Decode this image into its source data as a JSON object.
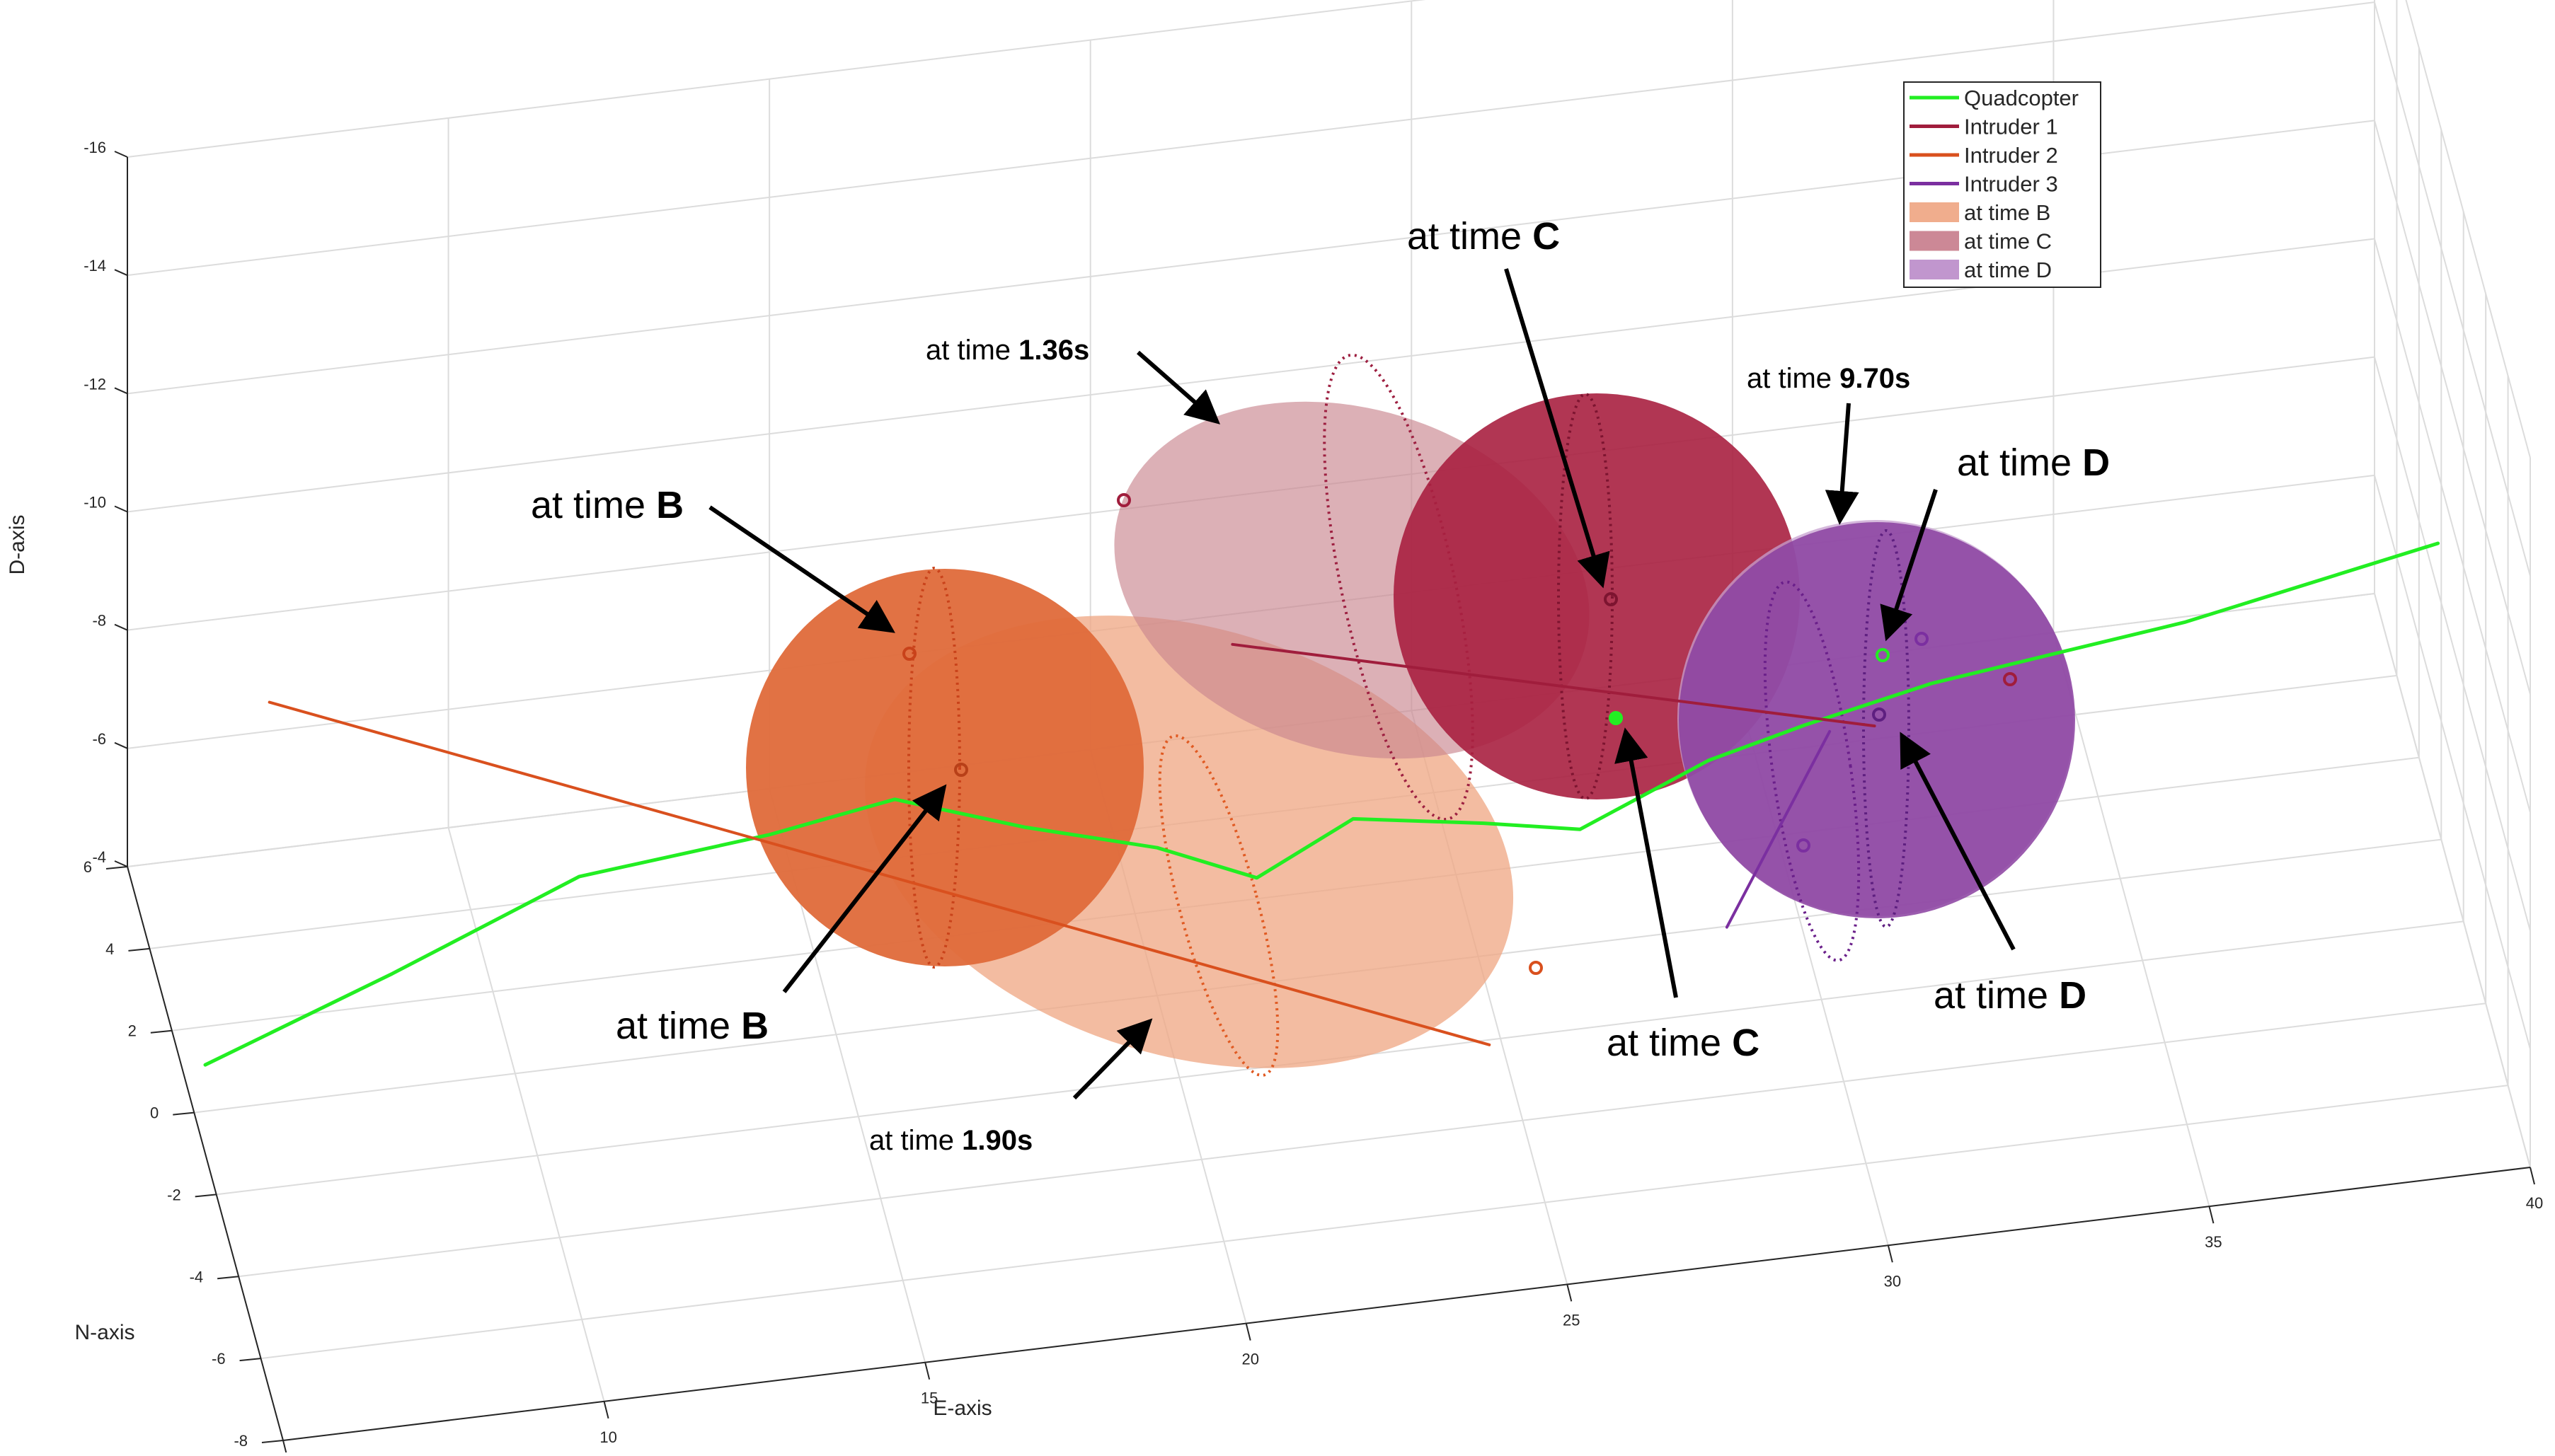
{
  "chart_data": {
    "type": "line",
    "projection": "3d",
    "axes": {
      "x": {
        "label": "E-axis",
        "range": [
          5,
          40
        ],
        "ticks": [
          "5",
          "10",
          "15",
          "20",
          "25",
          "30",
          "35",
          "40"
        ]
      },
      "y": {
        "label": "N-axis",
        "range": [
          -8,
          6
        ],
        "ticks": [
          "-8",
          "-6",
          "-4",
          "-2",
          "0",
          "2",
          "4",
          "6"
        ]
      },
      "z": {
        "label": "D-axis",
        "range": [
          -16,
          -4
        ],
        "reversed": true,
        "ticks": [
          "-4",
          "-6",
          "-8",
          "-10",
          "-12",
          "-14",
          "-16"
        ]
      }
    },
    "grid": true,
    "legend": {
      "placement": "top-right",
      "entries": [
        {
          "label": "Quadcopter",
          "kind": "line",
          "color": "#22ee22"
        },
        {
          "label": "Intruder 1",
          "kind": "line",
          "color": "#a01d3c"
        },
        {
          "label": "Intruder 2",
          "kind": "line",
          "color": "#d9501e"
        },
        {
          "label": "Intruder 3",
          "kind": "line",
          "color": "#7b2fa0"
        },
        {
          "label": "at time B",
          "kind": "patch",
          "color": "#f0ad8d"
        },
        {
          "label": "at time C",
          "kind": "patch",
          "color": "#cc8896"
        },
        {
          "label": "at time D",
          "kind": "patch",
          "color": "#c196ce"
        }
      ]
    },
    "series": [
      {
        "name": "Quadcopter",
        "color": "#22ee22",
        "points": [
          [
            5,
            -1,
            -5.5
          ],
          [
            8,
            -0.5,
            -6.3
          ],
          [
            11,
            0,
            -7.2
          ],
          [
            14,
            0.3,
            -7.3
          ],
          [
            16,
            0.5,
            -7.5
          ],
          [
            18,
            0.3,
            -6.9
          ],
          [
            20,
            0,
            -6.5
          ],
          [
            21.5,
            -0.3,
            -6.0
          ],
          [
            23,
            -0.3,
            -6.8
          ],
          [
            25,
            -0.5,
            -6.6
          ],
          [
            26.5,
            -0.5,
            -6.3
          ],
          [
            28.5,
            -0.5,
            -7.2
          ],
          [
            30,
            -0.5,
            -7.6
          ],
          [
            32,
            -0.3,
            -7.9
          ],
          [
            36,
            0,
            -8.2
          ],
          [
            40,
            0.3,
            -8.8
          ]
        ]
      },
      {
        "name": "Intruder 1",
        "color": "#a01d3c",
        "points": [
          [
            21,
            -1,
            -10.5
          ],
          [
            31,
            -1,
            -7.8
          ]
        ]
      },
      {
        "name": "Intruder 2",
        "color": "#d9501e",
        "points": [
          [
            6,
            -1,
            -11.5
          ],
          [
            25,
            -1,
            -3.2
          ]
        ]
      },
      {
        "name": "Intruder 3",
        "color": "#7b2fa0",
        "points": [
          [
            28.7,
            -1,
            -4.7
          ],
          [
            30.3,
            -1,
            -7.8
          ]
        ]
      }
    ],
    "annotations": [
      {
        "text": "at time ",
        "bold": "B"
      },
      {
        "text": "at time ",
        "bold": "B"
      },
      {
        "text": "at time ",
        "bold": "C"
      },
      {
        "text": "at time ",
        "bold": "C"
      },
      {
        "text": "at time ",
        "bold": "D"
      },
      {
        "text": "at time ",
        "bold": "D"
      },
      {
        "text": "at time ",
        "bold": "1.36s"
      },
      {
        "text": "at time ",
        "bold": "1.90s"
      },
      {
        "text": "at time ",
        "bold": "9.70s"
      }
    ]
  }
}
